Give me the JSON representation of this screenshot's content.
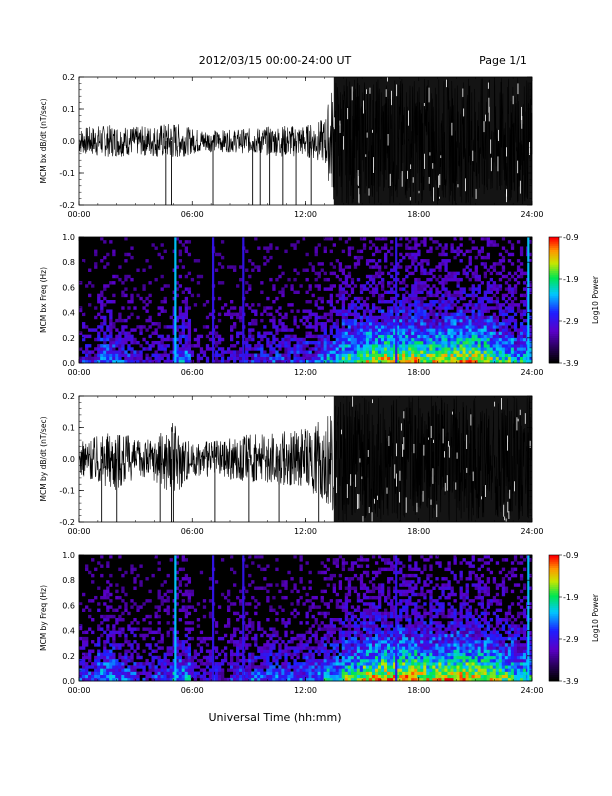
{
  "header": {
    "date_range": "2012/03/15  00:00-24:00 UT",
    "page": "Page 1/1"
  },
  "footer": {
    "xlabel": "Universal Time (hh:mm)"
  },
  "colors": {
    "waveform": "#000000",
    "background": "#ffffff"
  },
  "chart_data": [
    {
      "type": "line",
      "station": "MCM",
      "component": "bx",
      "ylabel": "MCM bx dB/dt (nT/sec)",
      "xlim_hours": [
        0,
        24
      ],
      "ylim": [
        -0.2,
        0.2
      ],
      "x_ticks": [
        "00:00",
        "06:00",
        "12:00",
        "18:00",
        "24:00"
      ],
      "y_ticks": [
        "-0.2",
        "-0.1",
        "0.0",
        "0.1",
        "0.2"
      ],
      "series": [
        {
          "envelope_hours": [
            0,
            1,
            2,
            3,
            4,
            5,
            6,
            7,
            8,
            9,
            10,
            11,
            12,
            13,
            13.5,
            14,
            15,
            16,
            17,
            18,
            19,
            20,
            21,
            22,
            23,
            24
          ],
          "envelope_amplitude": [
            0.04,
            0.05,
            0.05,
            0.045,
            0.05,
            0.06,
            0.04,
            0.035,
            0.035,
            0.04,
            0.045,
            0.05,
            0.05,
            0.07,
            0.2,
            0.2,
            0.2,
            0.2,
            0.2,
            0.2,
            0.2,
            0.2,
            0.2,
            0.2,
            0.2,
            0.2
          ],
          "spikes_hours": [
            4.6,
            4.9,
            7.1,
            9.2,
            9.6,
            10.1,
            10.8,
            11.5,
            12.3
          ]
        }
      ]
    },
    {
      "type": "heatmap",
      "station": "MCM",
      "component": "bx",
      "ylabel": "MCM bx Freq (Hz)",
      "xlim_hours": [
        0,
        24
      ],
      "ylim": [
        0.0,
        1.0
      ],
      "x_ticks": [
        "00:00",
        "06:00",
        "12:00",
        "18:00",
        "24:00"
      ],
      "y_ticks": [
        "0.0",
        "0.2",
        "0.4",
        "0.6",
        "0.8",
        "1.0"
      ],
      "colorbar": {
        "label": "Log10 Power",
        "range": [
          -3.9,
          -0.9
        ],
        "ticks": [
          "-0.9",
          "-1.9",
          "-2.9",
          "-3.9"
        ]
      },
      "vertical_lines_hours": [
        5.1,
        7.1,
        8.7,
        16.8,
        23.8
      ],
      "activity_profile": [
        0.3,
        0.45,
        0.35,
        0.25,
        0.3,
        0.45,
        0.2,
        0.25,
        0.3,
        0.35,
        0.35,
        0.35,
        0.4,
        0.5,
        0.65,
        0.75,
        0.8,
        0.8,
        0.75,
        0.8,
        0.8,
        0.75,
        0.65,
        0.55
      ]
    },
    {
      "type": "line",
      "station": "MCM",
      "component": "by",
      "ylabel": "MCM by dB/dt (nT/sec)",
      "xlim_hours": [
        0,
        24
      ],
      "ylim": [
        -0.2,
        0.2
      ],
      "x_ticks": [
        "00:00",
        "06:00",
        "12:00",
        "18:00",
        "24:00"
      ],
      "y_ticks": [
        "-0.2",
        "-0.1",
        "0.0",
        "0.1",
        "0.2"
      ],
      "series": [
        {
          "envelope_hours": [
            0,
            1,
            2,
            3,
            4,
            5,
            6,
            7,
            8,
            9,
            10,
            11,
            12,
            13,
            13.5,
            14,
            15,
            16,
            17,
            18,
            19,
            20,
            21,
            22,
            23,
            24
          ],
          "envelope_amplitude": [
            0.05,
            0.08,
            0.1,
            0.06,
            0.07,
            0.12,
            0.05,
            0.06,
            0.07,
            0.08,
            0.08,
            0.09,
            0.1,
            0.13,
            0.2,
            0.2,
            0.2,
            0.2,
            0.2,
            0.2,
            0.2,
            0.2,
            0.2,
            0.2,
            0.2,
            0.2
          ],
          "spikes_hours": [
            1.2,
            2.0,
            4.3,
            4.9,
            5.0,
            7.2,
            9.0,
            10.6,
            12.7
          ]
        }
      ]
    },
    {
      "type": "heatmap",
      "station": "MCM",
      "component": "by",
      "ylabel": "MCM by Freq (Hz)",
      "xlim_hours": [
        0,
        24
      ],
      "ylim": [
        0.0,
        1.0
      ],
      "x_ticks": [
        "00:00",
        "06:00",
        "12:00",
        "18:00",
        "24:00"
      ],
      "y_ticks": [
        "0.0",
        "0.2",
        "0.4",
        "0.6",
        "0.8",
        "1.0"
      ],
      "colorbar": {
        "label": "Log10 Power",
        "range": [
          -3.9,
          -0.9
        ],
        "ticks": [
          "-0.9",
          "-1.9",
          "-2.9",
          "-3.9"
        ]
      },
      "vertical_lines_hours": [
        5.1,
        7.1,
        8.7,
        16.8,
        23.8
      ],
      "activity_profile": [
        0.35,
        0.5,
        0.4,
        0.3,
        0.35,
        0.5,
        0.25,
        0.3,
        0.35,
        0.4,
        0.4,
        0.4,
        0.45,
        0.55,
        0.7,
        0.8,
        0.85,
        0.85,
        0.8,
        0.85,
        0.85,
        0.8,
        0.7,
        0.6
      ]
    }
  ]
}
